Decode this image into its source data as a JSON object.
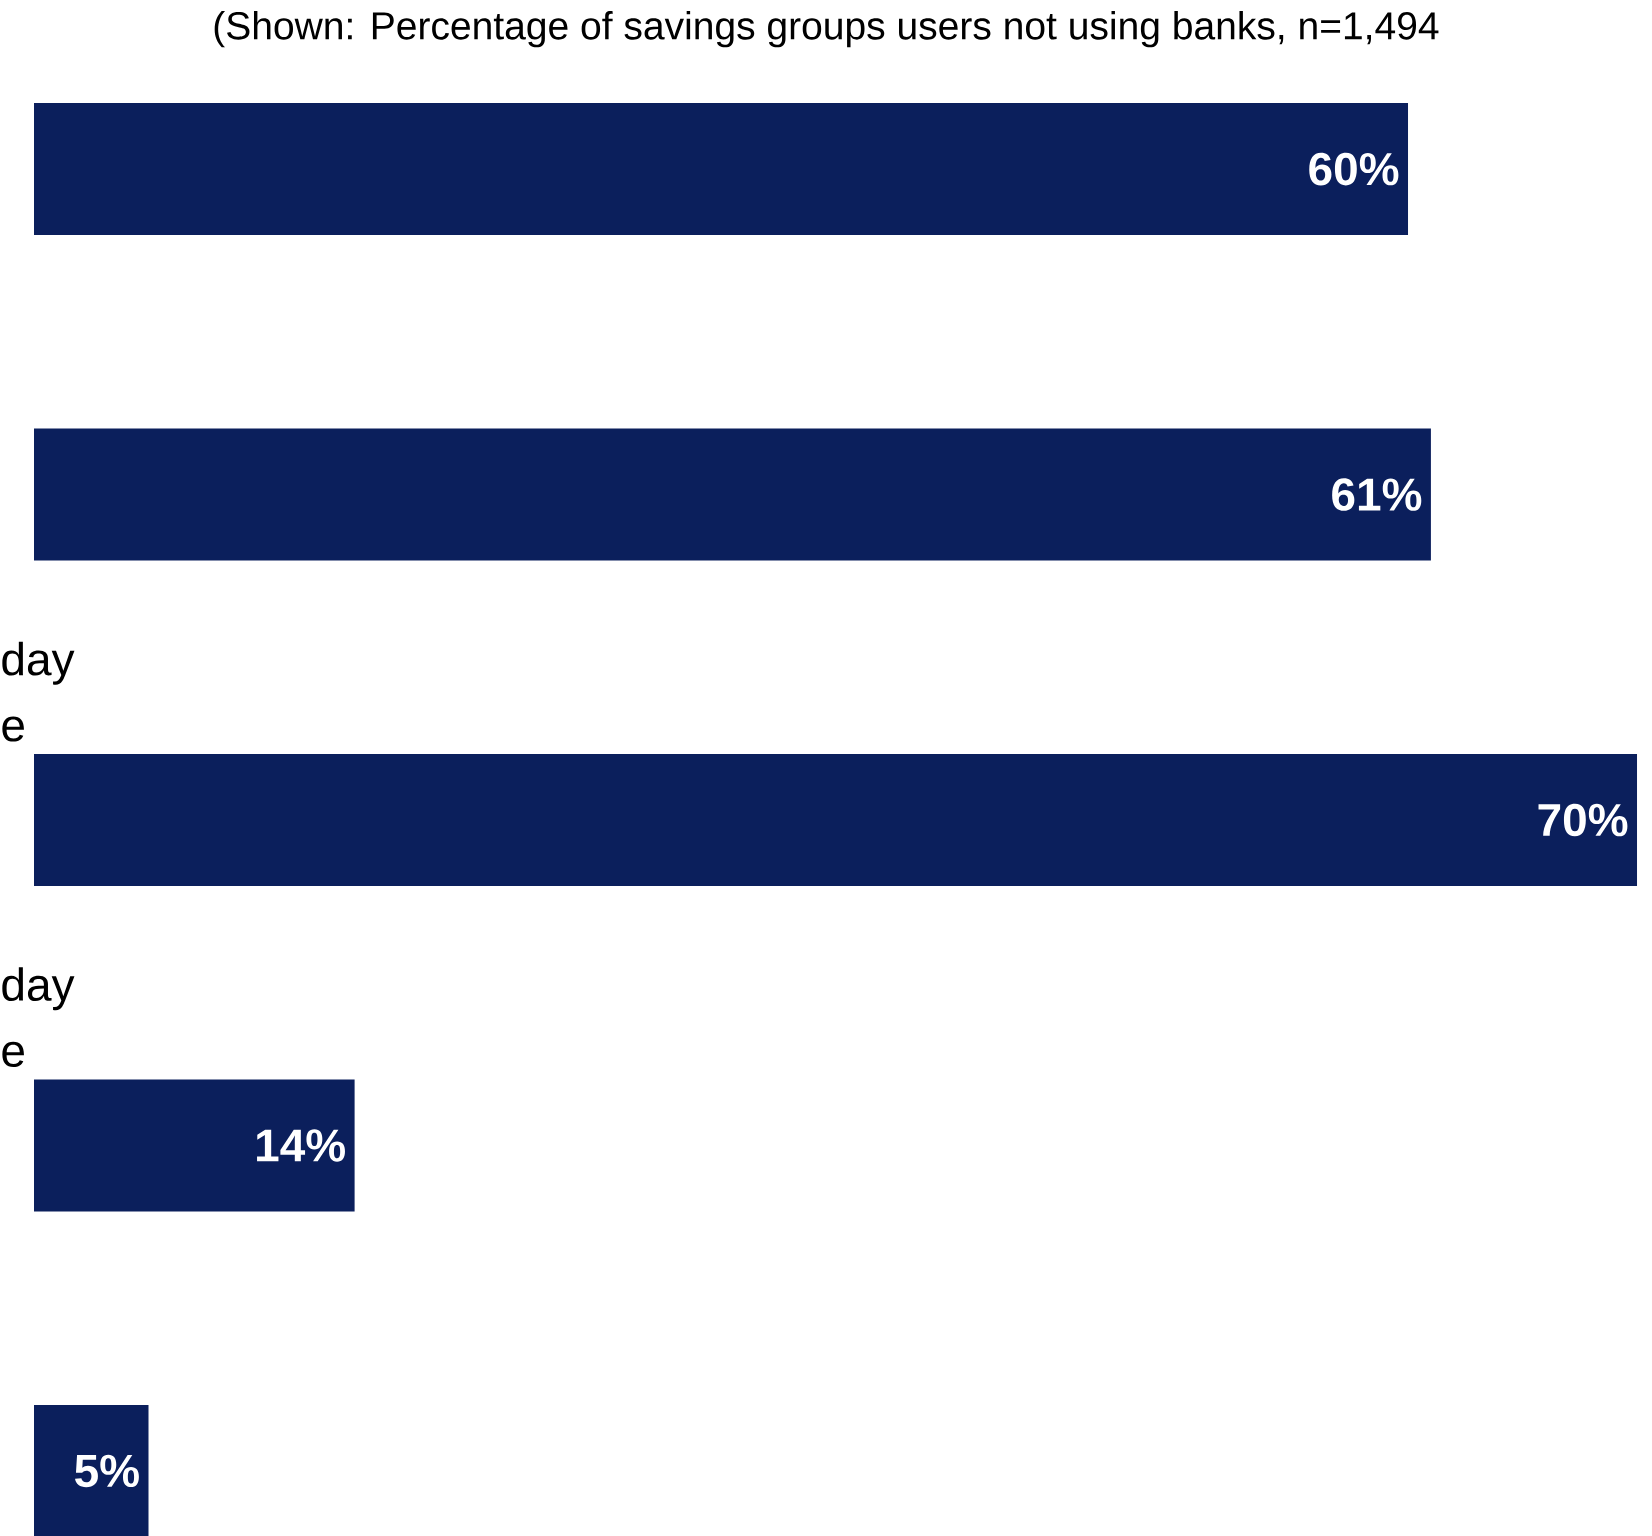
{
  "chart_data": {
    "type": "bar",
    "orientation": "horizontal",
    "title": "(Shown: Percentage of savings groups users not using banks, n=1,494",
    "categories": [
      null,
      null,
      "day e",
      "day e",
      null
    ],
    "values": [
      60,
      61,
      70,
      14,
      5
    ],
    "value_labels": [
      "60%",
      "61%",
      "70%",
      "14%",
      "5%"
    ],
    "color": "#0b1f5c"
  }
}
